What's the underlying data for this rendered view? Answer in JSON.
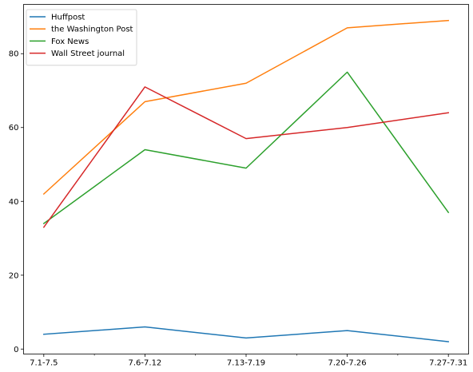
{
  "chart_data": {
    "type": "line",
    "title": "",
    "xlabel": "",
    "ylabel": "",
    "categories": [
      "7.1-7.5",
      "7.6-7.12",
      "7.13-7.19",
      "7.20-7.26",
      "7.27-7.31"
    ],
    "x_positions": [
      0,
      1,
      2,
      3,
      4
    ],
    "minor_ticks": [
      0.5,
      1.5,
      2.5,
      3.5
    ],
    "yticks": [
      0,
      20,
      40,
      60,
      80
    ],
    "ylim": [
      -1.35,
      93.35
    ],
    "xlim": [
      -0.2,
      4.2
    ],
    "grid": false,
    "legend_position": "top-left",
    "series": [
      {
        "name": "Huffpost",
        "color": "#1f77b4",
        "values": [
          4,
          6,
          3,
          5,
          2
        ]
      },
      {
        "name": "the Washington Post",
        "color": "#ff7f0e",
        "values": [
          42,
          67,
          72,
          87,
          89
        ]
      },
      {
        "name": "Fox News",
        "color": "#2ca02c",
        "values": [
          34,
          54,
          49,
          75,
          37
        ]
      },
      {
        "name": "Wall Street journal",
        "color": "#d62728",
        "values": [
          33,
          71,
          57,
          60,
          64
        ]
      }
    ]
  }
}
